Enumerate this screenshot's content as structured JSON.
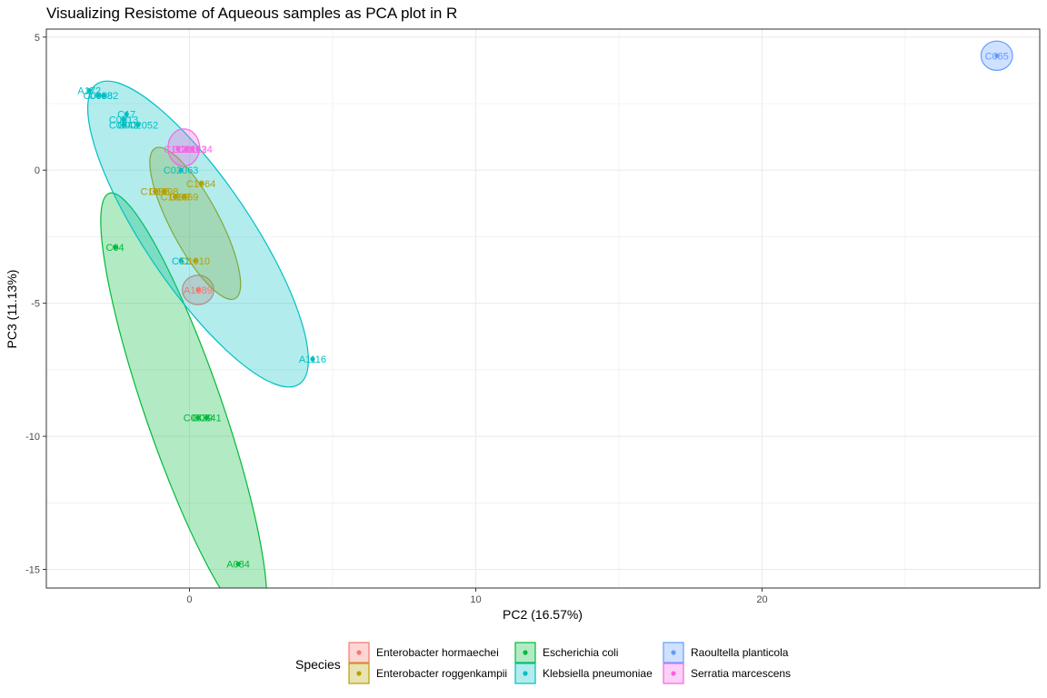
{
  "chart_data": {
    "type": "scatter",
    "title": "Visualizing Resistome of Aqueous samples as PCA plot in R",
    "xlabel": "PC2 (16.57%)",
    "ylabel": "PC3 (11.13%)",
    "xlim": [
      -5,
      29.7
    ],
    "ylim": [
      -15.7,
      5.3
    ],
    "x_ticks": [
      0,
      10,
      20
    ],
    "x_tick_labels": [
      "0",
      "10",
      "20"
    ],
    "y_ticks": [
      5,
      0,
      -5,
      -10,
      -15
    ],
    "y_tick_labels": [
      "5",
      "0",
      "-5",
      "-10",
      "-15"
    ],
    "grid": true,
    "legend_position": "bottom",
    "legend_title": "Species",
    "series": [
      {
        "name": "Enterobacter hormaechei",
        "color": "#F8766D",
        "points": [
          {
            "label": "A1089",
            "x": 0.3,
            "y": -4.5
          }
        ],
        "ellipse": {
          "cx": 0.3,
          "cy": -4.5,
          "rx": 0.55,
          "ry": 0.55,
          "angle": 0
        }
      },
      {
        "name": "Enterobacter roggenkampii",
        "color": "#B79F00",
        "points": [
          {
            "label": "C1096",
            "x": -1.2,
            "y": -0.8
          },
          {
            "label": "C1098",
            "x": -0.9,
            "y": -0.8
          },
          {
            "label": "C1099",
            "x": -0.5,
            "y": -1.0
          },
          {
            "label": "C1059",
            "x": -0.2,
            "y": -1.0
          },
          {
            "label": "C1064",
            "x": 0.4,
            "y": -0.5
          },
          {
            "label": "C1010",
            "x": 0.2,
            "y": -3.4
          }
        ],
        "ellipse": {
          "cx": 0.2,
          "cy": -2.0,
          "rx": 0.85,
          "ry": 3.2,
          "angle": -28
        }
      },
      {
        "name": "Escherichia coli",
        "color": "#00BA38",
        "points": [
          {
            "label": "C04",
            "x": -2.6,
            "y": -2.9
          },
          {
            "label": "C0841",
            "x": 0.6,
            "y": -9.3
          },
          {
            "label": "C0839",
            "x": 0.3,
            "y": -9.3
          },
          {
            "label": "A084",
            "x": 1.7,
            "y": -14.8
          }
        ],
        "ellipse": {
          "cx": -0.2,
          "cy": -9.0,
          "rx": 1.35,
          "ry": 8.6,
          "angle": -19
        }
      },
      {
        "name": "Klebsiella pneumoniae",
        "color": "#00BFC4",
        "points": [
          {
            "label": "A172",
            "x": -3.5,
            "y": 3.0
          },
          {
            "label": "C0082",
            "x": -3.0,
            "y": 2.8
          },
          {
            "label": "C0088",
            "x": -3.2,
            "y": 2.8
          },
          {
            "label": "C17",
            "x": -2.2,
            "y": 2.1
          },
          {
            "label": "C0013",
            "x": -2.3,
            "y": 1.9
          },
          {
            "label": "C002052",
            "x": -1.8,
            "y": 1.7
          },
          {
            "label": "C0043",
            "x": -2.3,
            "y": 1.7
          },
          {
            "label": "C02063",
            "x": -0.3,
            "y": 0.0
          },
          {
            "label": "C51",
            "x": -0.3,
            "y": -3.4
          },
          {
            "label": "A1116",
            "x": 4.3,
            "y": -7.1
          }
        ],
        "ellipse": {
          "cx": 0.3,
          "cy": -2.4,
          "rx": 1.85,
          "ry": 6.8,
          "angle": -34
        }
      },
      {
        "name": "Raoultella planticola",
        "color": "#619CFF",
        "points": [
          {
            "label": "C065",
            "x": 28.2,
            "y": 4.3
          }
        ],
        "ellipse": {
          "cx": 28.2,
          "cy": 4.3,
          "rx": 0.55,
          "ry": 0.55,
          "angle": 0
        }
      },
      {
        "name": "Serratia marcescens",
        "color": "#F564E3",
        "points": [
          {
            "label": "C1121",
            "x": -0.4,
            "y": 0.8
          },
          {
            "label": "C1122",
            "x": -0.1,
            "y": 0.8
          },
          {
            "label": "C1123",
            "x": 0.1,
            "y": 0.8
          },
          {
            "label": "C1124",
            "x": 0.3,
            "y": 0.8
          }
        ],
        "ellipse": {
          "cx": -0.2,
          "cy": 0.85,
          "rx": 0.55,
          "ry": 0.7,
          "angle": 0
        }
      }
    ]
  }
}
